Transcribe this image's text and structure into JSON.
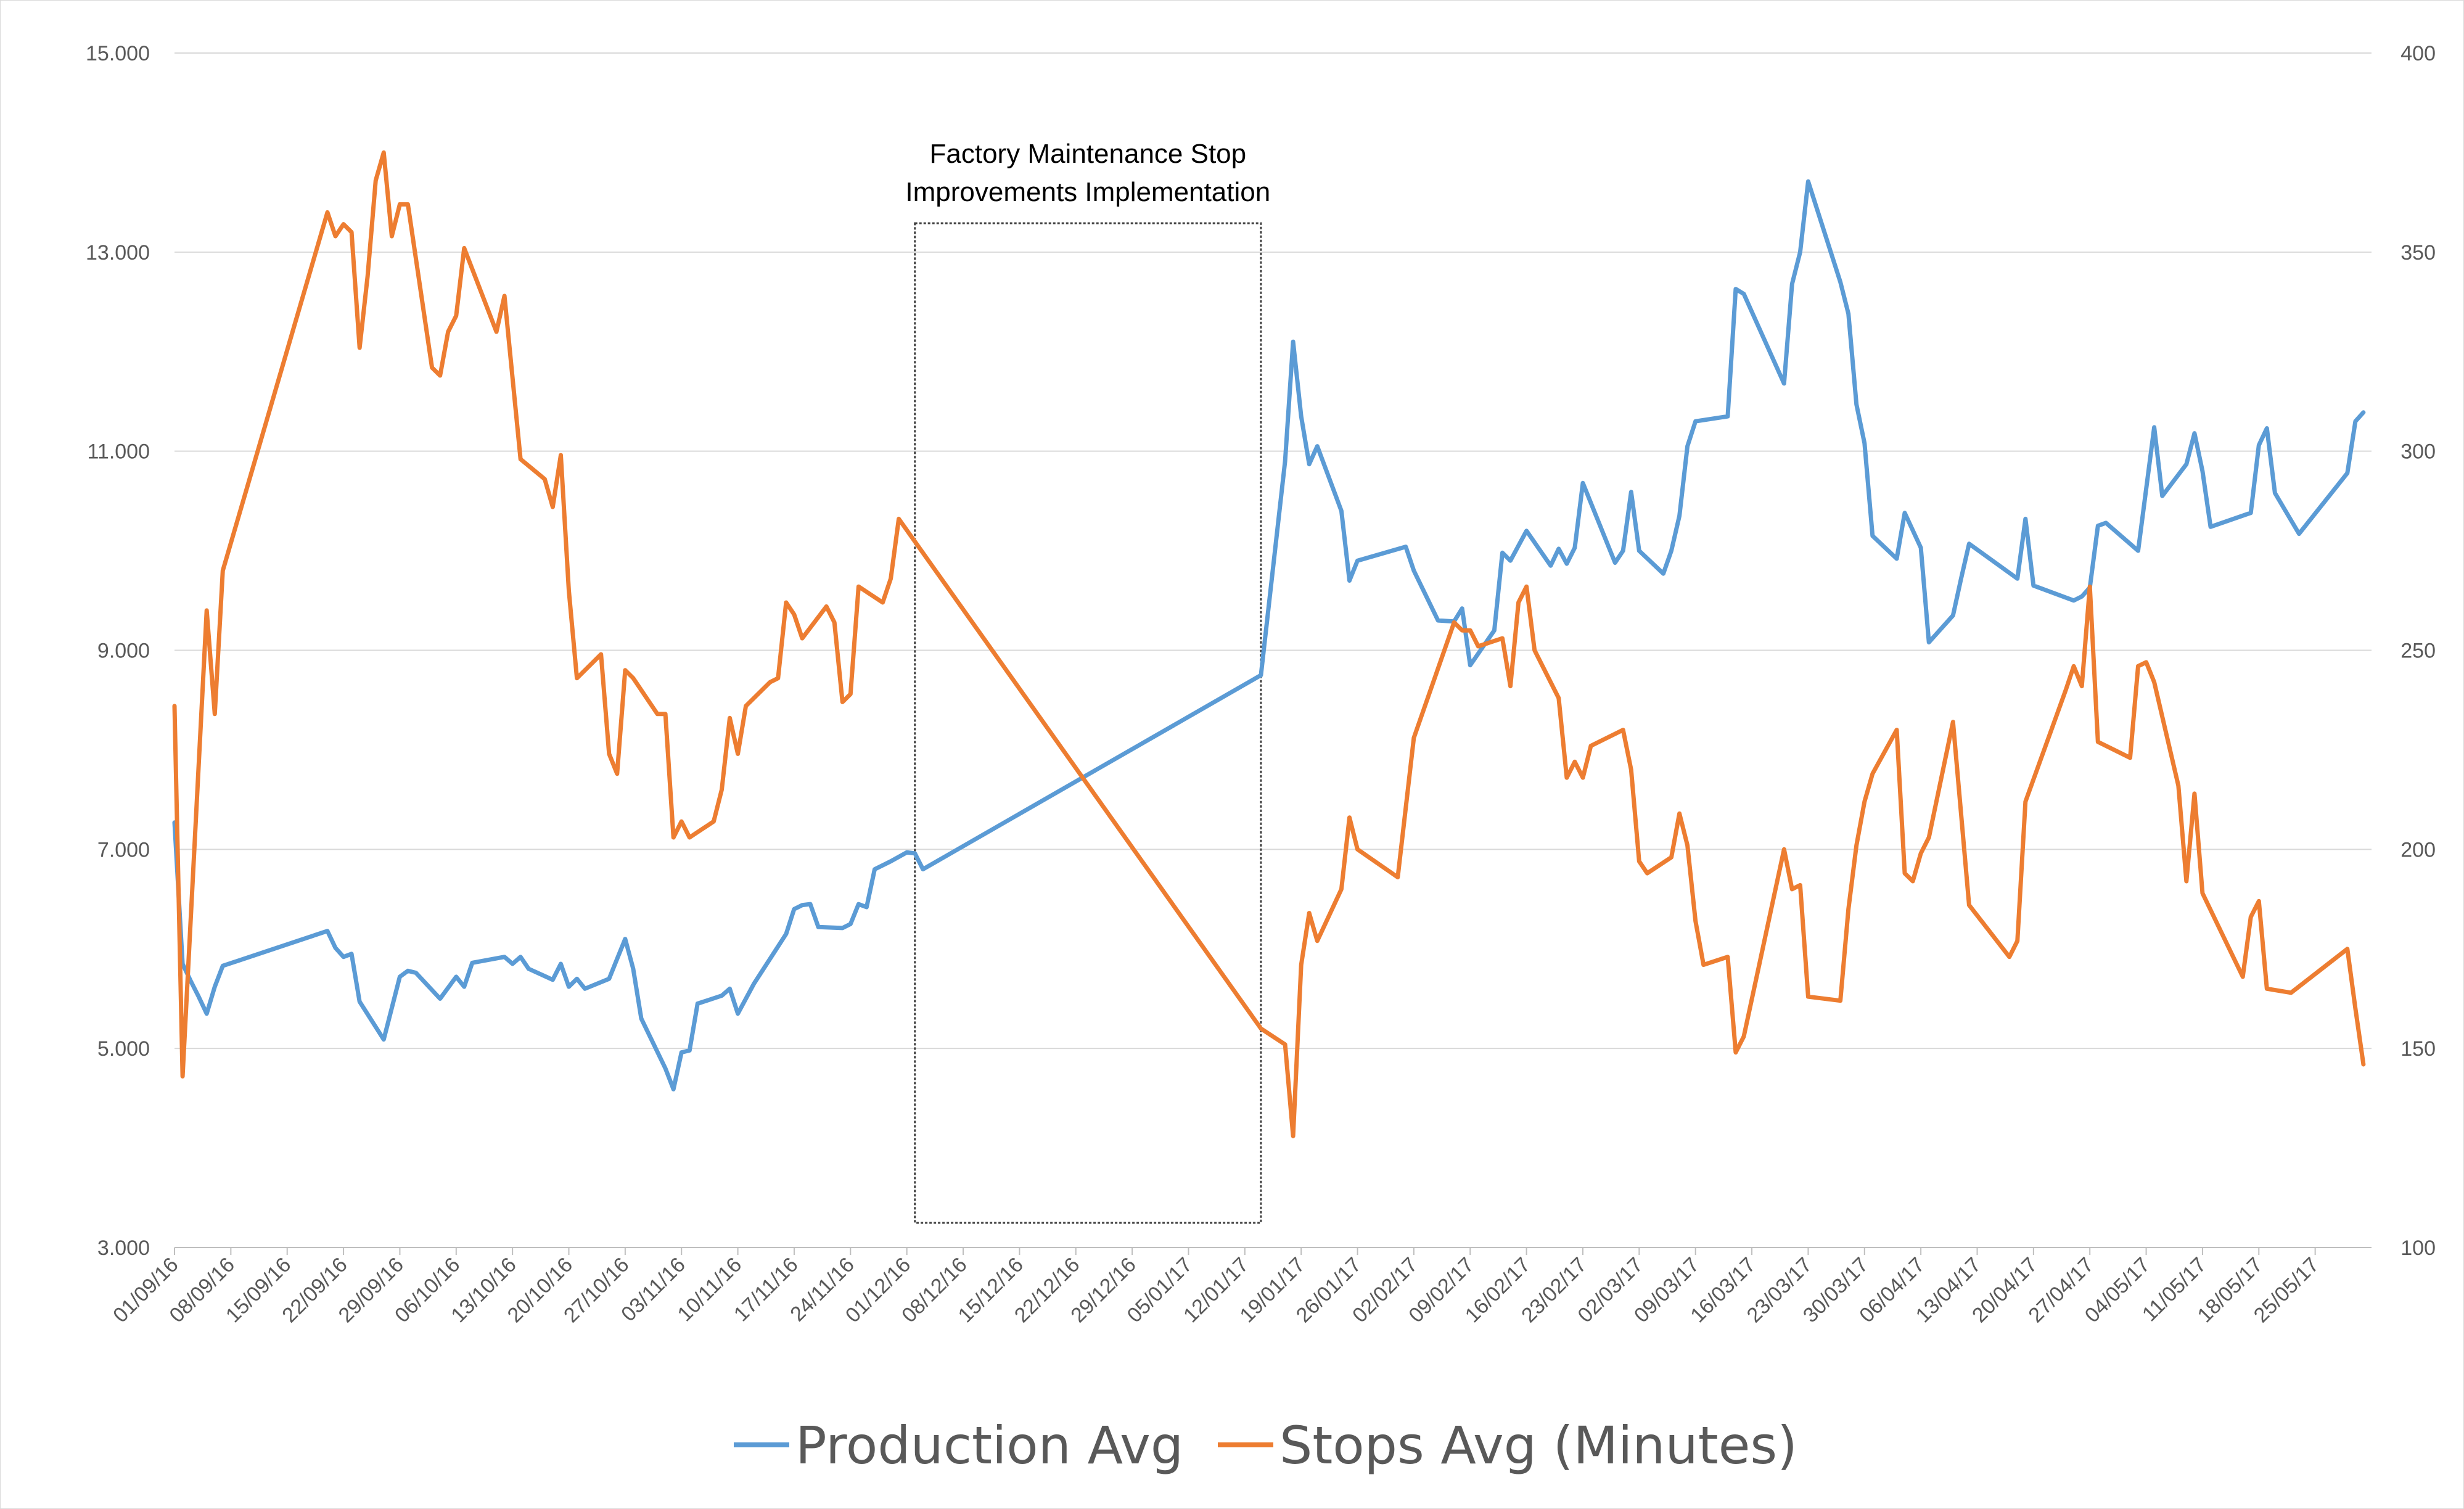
{
  "chart_data": {
    "type": "line",
    "title": "",
    "xlabel": "",
    "ylabel": "",
    "y_left": {
      "ylim": [
        3000,
        15000
      ],
      "ticks": [
        "3.000",
        "5.000",
        "7.000",
        "9.000",
        "11.000",
        "13.000",
        "15.000"
      ]
    },
    "y_right": {
      "ylim": [
        100,
        400
      ],
      "ticks": [
        "100",
        "150",
        "200",
        "250",
        "300",
        "350",
        "400"
      ]
    },
    "x_range": [
      "2016-09-01",
      "2017-06-01"
    ],
    "x_tick_labels": [
      "01/09/16",
      "08/09/16",
      "15/09/16",
      "22/09/16",
      "29/09/16",
      "06/10/16",
      "13/10/16",
      "20/10/16",
      "27/10/16",
      "03/11/16",
      "10/11/16",
      "17/11/16",
      "24/11/16",
      "01/12/16",
      "08/12/16",
      "15/12/16",
      "22/12/16",
      "29/12/16",
      "05/01/17",
      "12/01/17",
      "19/01/17",
      "26/01/17",
      "02/02/17",
      "09/02/17",
      "16/02/17",
      "23/02/17",
      "02/03/17",
      "09/03/17",
      "16/03/17",
      "23/03/17",
      "30/03/17",
      "06/04/17",
      "13/04/17",
      "20/04/17",
      "27/04/17",
      "04/05/17",
      "11/05/17",
      "18/05/17",
      "25/05/17"
    ],
    "grid": true,
    "legend_position": "bottom",
    "annotation": {
      "lines": [
        "Factory Maintenance Stop",
        "Improvements Implementation"
      ],
      "x_start": "2016-12-02",
      "x_end": "2017-01-14"
    },
    "series": [
      {
        "name": "Production Avg",
        "axis": "left",
        "color": "#5b9bd5",
        "points": [
          [
            "2016-09-01",
            7270
          ],
          [
            "2016-09-02",
            5850
          ],
          [
            "2016-09-03",
            5680
          ],
          [
            "2016-09-04",
            5520
          ],
          [
            "2016-09-05",
            5350
          ],
          [
            "2016-09-06",
            5620
          ],
          [
            "2016-09-07",
            5830
          ],
          [
            "2016-09-20",
            6180
          ],
          [
            "2016-09-21",
            6010
          ],
          [
            "2016-09-22",
            5920
          ],
          [
            "2016-09-23",
            5950
          ],
          [
            "2016-09-24",
            5470
          ],
          [
            "2016-09-27",
            5090
          ],
          [
            "2016-09-29",
            5720
          ],
          [
            "2016-09-30",
            5780
          ],
          [
            "2016-10-01",
            5760
          ],
          [
            "2016-10-04",
            5500
          ],
          [
            "2016-10-06",
            5720
          ],
          [
            "2016-10-07",
            5620
          ],
          [
            "2016-10-08",
            5860
          ],
          [
            "2016-10-12",
            5920
          ],
          [
            "2016-10-13",
            5850
          ],
          [
            "2016-10-14",
            5920
          ],
          [
            "2016-10-15",
            5800
          ],
          [
            "2016-10-18",
            5690
          ],
          [
            "2016-10-19",
            5850
          ],
          [
            "2016-10-20",
            5620
          ],
          [
            "2016-10-21",
            5700
          ],
          [
            "2016-10-22",
            5600
          ],
          [
            "2016-10-25",
            5700
          ],
          [
            "2016-10-26",
            5900
          ],
          [
            "2016-10-27",
            6100
          ],
          [
            "2016-10-28",
            5800
          ],
          [
            "2016-10-29",
            5300
          ],
          [
            "2016-11-01",
            4800
          ],
          [
            "2016-11-02",
            4590
          ],
          [
            "2016-11-03",
            4960
          ],
          [
            "2016-11-04",
            4980
          ],
          [
            "2016-11-05",
            5450
          ],
          [
            "2016-11-08",
            5530
          ],
          [
            "2016-11-09",
            5600
          ],
          [
            "2016-11-10",
            5350
          ],
          [
            "2016-11-12",
            5650
          ],
          [
            "2016-11-16",
            6150
          ],
          [
            "2016-11-17",
            6400
          ],
          [
            "2016-11-18",
            6440
          ],
          [
            "2016-11-19",
            6450
          ],
          [
            "2016-11-20",
            6220
          ],
          [
            "2016-11-23",
            6210
          ],
          [
            "2016-11-24",
            6250
          ],
          [
            "2016-11-25",
            6450
          ],
          [
            "2016-11-26",
            6420
          ],
          [
            "2016-11-27",
            6800
          ],
          [
            "2016-11-29",
            6880
          ],
          [
            "2016-12-01",
            6970
          ],
          [
            "2016-12-02",
            6960
          ],
          [
            "2016-12-03",
            6800
          ],
          [
            "2017-01-14",
            8750
          ],
          [
            "2017-01-17",
            10900
          ],
          [
            "2017-01-18",
            12100
          ],
          [
            "2017-01-19",
            11350
          ],
          [
            "2017-01-20",
            10870
          ],
          [
            "2017-01-21",
            11050
          ],
          [
            "2017-01-24",
            10400
          ],
          [
            "2017-01-25",
            9700
          ],
          [
            "2017-01-26",
            9900
          ],
          [
            "2017-02-01",
            10040
          ],
          [
            "2017-02-02",
            9800
          ],
          [
            "2017-02-05",
            9300
          ],
          [
            "2017-02-07",
            9290
          ],
          [
            "2017-02-08",
            9420
          ],
          [
            "2017-02-09",
            8850
          ],
          [
            "2017-02-12",
            9200
          ],
          [
            "2017-02-13",
            9980
          ],
          [
            "2017-02-14",
            9900
          ],
          [
            "2017-02-16",
            10200
          ],
          [
            "2017-02-19",
            9850
          ],
          [
            "2017-02-20",
            10020
          ],
          [
            "2017-02-21",
            9870
          ],
          [
            "2017-02-22",
            10030
          ],
          [
            "2017-02-23",
            10680
          ],
          [
            "2017-02-27",
            9880
          ],
          [
            "2017-02-28",
            10000
          ],
          [
            "2017-03-01",
            10590
          ],
          [
            "2017-03-02",
            10000
          ],
          [
            "2017-03-05",
            9770
          ],
          [
            "2017-03-06",
            10000
          ],
          [
            "2017-03-07",
            10350
          ],
          [
            "2017-03-08",
            11050
          ],
          [
            "2017-03-09",
            11300
          ],
          [
            "2017-03-13",
            11350
          ],
          [
            "2017-03-14",
            12630
          ],
          [
            "2017-03-15",
            12580
          ],
          [
            "2017-03-20",
            11680
          ],
          [
            "2017-03-21",
            12680
          ],
          [
            "2017-03-22",
            13000
          ],
          [
            "2017-03-23",
            13710
          ],
          [
            "2017-03-27",
            12700
          ],
          [
            "2017-03-28",
            12380
          ],
          [
            "2017-03-29",
            11470
          ],
          [
            "2017-03-30",
            11080
          ],
          [
            "2017-03-31",
            10150
          ],
          [
            "2017-04-03",
            9920
          ],
          [
            "2017-04-04",
            10380
          ],
          [
            "2017-04-06",
            10030
          ],
          [
            "2017-04-07",
            9080
          ],
          [
            "2017-04-10",
            9350
          ],
          [
            "2017-04-11",
            9720
          ],
          [
            "2017-04-12",
            10070
          ],
          [
            "2017-04-18",
            9720
          ],
          [
            "2017-04-19",
            10320
          ],
          [
            "2017-04-20",
            9650
          ],
          [
            "2017-04-25",
            9500
          ],
          [
            "2017-04-26",
            9540
          ],
          [
            "2017-04-27",
            9630
          ],
          [
            "2017-04-28",
            10250
          ],
          [
            "2017-04-29",
            10280
          ],
          [
            "2017-05-03",
            10000
          ],
          [
            "2017-05-05",
            11240
          ],
          [
            "2017-05-06",
            10550
          ],
          [
            "2017-05-09",
            10870
          ],
          [
            "2017-05-10",
            11180
          ],
          [
            "2017-05-11",
            10800
          ],
          [
            "2017-05-12",
            10240
          ],
          [
            "2017-05-17",
            10380
          ],
          [
            "2017-05-18",
            11060
          ],
          [
            "2017-05-19",
            11230
          ],
          [
            "2017-05-20",
            10580
          ],
          [
            "2017-05-23",
            10170
          ],
          [
            "2017-05-29",
            10780
          ],
          [
            "2017-05-30",
            11300
          ],
          [
            "2017-05-31",
            11390
          ]
        ]
      },
      {
        "name": "Stops Avg (Minutes)",
        "axis": "right",
        "color": "#ed7d31",
        "points": [
          [
            "2016-09-01",
            236
          ],
          [
            "2016-09-02",
            143
          ],
          [
            "2016-09-05",
            260
          ],
          [
            "2016-09-06",
            234
          ],
          [
            "2016-09-07",
            270
          ],
          [
            "2016-09-20",
            360
          ],
          [
            "2016-09-21",
            354
          ],
          [
            "2016-09-22",
            357
          ],
          [
            "2016-09-23",
            355
          ],
          [
            "2016-09-24",
            326
          ],
          [
            "2016-09-25",
            344
          ],
          [
            "2016-09-26",
            368
          ],
          [
            "2016-09-27",
            375
          ],
          [
            "2016-09-28",
            354
          ],
          [
            "2016-09-29",
            362
          ],
          [
            "2016-09-30",
            362
          ],
          [
            "2016-10-03",
            321
          ],
          [
            "2016-10-04",
            319
          ],
          [
            "2016-10-05",
            330
          ],
          [
            "2016-10-06",
            334
          ],
          [
            "2016-10-07",
            351
          ],
          [
            "2016-10-11",
            330
          ],
          [
            "2016-10-12",
            339
          ],
          [
            "2016-10-14",
            298
          ],
          [
            "2016-10-17",
            293
          ],
          [
            "2016-10-18",
            286
          ],
          [
            "2016-10-19",
            299
          ],
          [
            "2016-10-20",
            265
          ],
          [
            "2016-10-21",
            243
          ],
          [
            "2016-10-24",
            249
          ],
          [
            "2016-10-25",
            224
          ],
          [
            "2016-10-26",
            219
          ],
          [
            "2016-10-27",
            245
          ],
          [
            "2016-10-28",
            243
          ],
          [
            "2016-10-31",
            234
          ],
          [
            "2016-11-01",
            234
          ],
          [
            "2016-11-02",
            203
          ],
          [
            "2016-11-03",
            207
          ],
          [
            "2016-11-04",
            203
          ],
          [
            "2016-11-07",
            207
          ],
          [
            "2016-11-08",
            215
          ],
          [
            "2016-11-09",
            233
          ],
          [
            "2016-11-10",
            224
          ],
          [
            "2016-11-11",
            236
          ],
          [
            "2016-11-14",
            242
          ],
          [
            "2016-11-15",
            243
          ],
          [
            "2016-11-16",
            262
          ],
          [
            "2016-11-17",
            259
          ],
          [
            "2016-11-18",
            253
          ],
          [
            "2016-11-21",
            261
          ],
          [
            "2016-11-22",
            257
          ],
          [
            "2016-11-23",
            237
          ],
          [
            "2016-11-24",
            239
          ],
          [
            "2016-11-25",
            266
          ],
          [
            "2016-11-28",
            262
          ],
          [
            "2016-11-29",
            268
          ],
          [
            "2016-11-30",
            283
          ],
          [
            "2017-01-14",
            155
          ],
          [
            "2017-01-17",
            151
          ],
          [
            "2017-01-18",
            128
          ],
          [
            "2017-01-19",
            171
          ],
          [
            "2017-01-20",
            184
          ],
          [
            "2017-01-21",
            177
          ],
          [
            "2017-01-24",
            190
          ],
          [
            "2017-01-25",
            208
          ],
          [
            "2017-01-26",
            200
          ],
          [
            "2017-01-31",
            193
          ],
          [
            "2017-02-02",
            228
          ],
          [
            "2017-02-07",
            257
          ],
          [
            "2017-02-08",
            255
          ],
          [
            "2017-02-09",
            255
          ],
          [
            "2017-02-10",
            251
          ],
          [
            "2017-02-13",
            253
          ],
          [
            "2017-02-14",
            241
          ],
          [
            "2017-02-15",
            262
          ],
          [
            "2017-02-16",
            266
          ],
          [
            "2017-02-17",
            250
          ],
          [
            "2017-02-20",
            238
          ],
          [
            "2017-02-21",
            218
          ],
          [
            "2017-02-22",
            222
          ],
          [
            "2017-02-23",
            218
          ],
          [
            "2017-02-24",
            226
          ],
          [
            "2017-02-28",
            230
          ],
          [
            "2017-03-01",
            220
          ],
          [
            "2017-03-02",
            197
          ],
          [
            "2017-03-03",
            194
          ],
          [
            "2017-03-06",
            198
          ],
          [
            "2017-03-07",
            209
          ],
          [
            "2017-03-08",
            201
          ],
          [
            "2017-03-09",
            182
          ],
          [
            "2017-03-10",
            171
          ],
          [
            "2017-03-13",
            173
          ],
          [
            "2017-03-14",
            149
          ],
          [
            "2017-03-15",
            153
          ],
          [
            "2017-03-20",
            200
          ],
          [
            "2017-03-21",
            190
          ],
          [
            "2017-03-22",
            191
          ],
          [
            "2017-03-23",
            163
          ],
          [
            "2017-03-27",
            162
          ],
          [
            "2017-03-28",
            185
          ],
          [
            "2017-03-29",
            201
          ],
          [
            "2017-03-30",
            212
          ],
          [
            "2017-03-31",
            219
          ],
          [
            "2017-04-03",
            230
          ],
          [
            "2017-04-04",
            194
          ],
          [
            "2017-04-05",
            192
          ],
          [
            "2017-04-06",
            199
          ],
          [
            "2017-04-07",
            203
          ],
          [
            "2017-04-10",
            232
          ],
          [
            "2017-04-12",
            186
          ],
          [
            "2017-04-17",
            173
          ],
          [
            "2017-04-18",
            177
          ],
          [
            "2017-04-19",
            212
          ],
          [
            "2017-04-24",
            240
          ],
          [
            "2017-04-25",
            246
          ],
          [
            "2017-04-26",
            241
          ],
          [
            "2017-04-27",
            266
          ],
          [
            "2017-04-28",
            227
          ],
          [
            "2017-05-02",
            223
          ],
          [
            "2017-05-03",
            246
          ],
          [
            "2017-05-04",
            247
          ],
          [
            "2017-05-05",
            242
          ],
          [
            "2017-05-08",
            216
          ],
          [
            "2017-05-09",
            192
          ],
          [
            "2017-05-10",
            214
          ],
          [
            "2017-05-11",
            189
          ],
          [
            "2017-05-16",
            168
          ],
          [
            "2017-05-17",
            183
          ],
          [
            "2017-05-18",
            187
          ],
          [
            "2017-05-19",
            165
          ],
          [
            "2017-05-22",
            164
          ],
          [
            "2017-05-29",
            175
          ],
          [
            "2017-05-30",
            160
          ],
          [
            "2017-05-31",
            146
          ]
        ]
      }
    ]
  }
}
